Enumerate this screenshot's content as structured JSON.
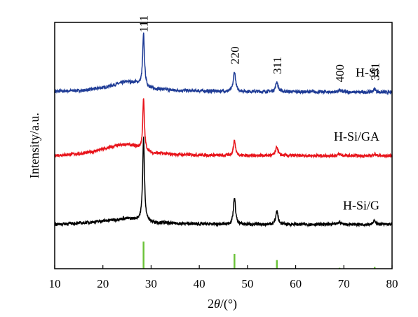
{
  "chart_data": {
    "type": "line",
    "xlabel_prefix": "2",
    "xlabel_theta": "θ",
    "xlabel_suffix": "/(°)",
    "ylabel": "Intensity/a.u.",
    "xlim": [
      10,
      80
    ],
    "xticks": [
      "10",
      "20",
      "30",
      "40",
      "50",
      "60",
      "70",
      "80"
    ],
    "series": [
      {
        "name": "H-Si",
        "color": "#1f3c96",
        "offset": 0.72,
        "baseline": [
          [
            10,
            0.0
          ],
          [
            16,
            0.004
          ],
          [
            20,
            0.015
          ],
          [
            23,
            0.03
          ],
          [
            25,
            0.04
          ],
          [
            27,
            0.035
          ],
          [
            30,
            0.012
          ],
          [
            35,
            0.004
          ],
          [
            45,
            0.0
          ],
          [
            80,
            -0.004
          ]
        ],
        "peaks": [
          [
            28.44,
            0.21,
            0.22
          ],
          [
            47.3,
            0.08,
            0.28
          ],
          [
            56.1,
            0.04,
            0.3
          ],
          [
            69.1,
            0.007,
            0.35
          ],
          [
            76.4,
            0.014,
            0.3
          ]
        ],
        "noise": 0.006
      },
      {
        "name": "H-Si/GA",
        "color": "#e8141b",
        "offset": 0.46,
        "baseline": [
          [
            10,
            0.0
          ],
          [
            16,
            0.008
          ],
          [
            20,
            0.025
          ],
          [
            23,
            0.04
          ],
          [
            25,
            0.045
          ],
          [
            27,
            0.035
          ],
          [
            30,
            0.01
          ],
          [
            35,
            0.004
          ],
          [
            45,
            0.0
          ],
          [
            80,
            -0.002
          ]
        ],
        "peaks": [
          [
            28.44,
            0.21,
            0.2
          ],
          [
            47.3,
            0.06,
            0.26
          ],
          [
            56.1,
            0.035,
            0.28
          ],
          [
            69.1,
            0.006,
            0.35
          ],
          [
            76.4,
            0.008,
            0.3
          ]
        ],
        "noise": 0.006
      },
      {
        "name": "H-Si/G",
        "color": "#000000",
        "offset": 0.18,
        "baseline": [
          [
            10,
            0.0
          ],
          [
            16,
            0.006
          ],
          [
            20,
            0.014
          ],
          [
            23,
            0.02
          ],
          [
            25,
            0.024
          ],
          [
            27,
            0.02
          ],
          [
            30,
            0.008
          ],
          [
            35,
            0.004
          ],
          [
            45,
            0.0
          ],
          [
            80,
            0.0
          ]
        ],
        "peaks": [
          [
            28.44,
            0.34,
            0.22
          ],
          [
            47.3,
            0.11,
            0.26
          ],
          [
            56.1,
            0.055,
            0.28
          ],
          [
            69.1,
            0.01,
            0.35
          ],
          [
            76.4,
            0.015,
            0.3
          ]
        ],
        "noise": 0.006
      }
    ],
    "series_labels": [
      {
        "text": "H-Si",
        "series": 0
      },
      {
        "text": "H-Si/GA",
        "series": 1
      },
      {
        "text": "H-Si/G",
        "series": 2
      }
    ],
    "peak_labels": [
      {
        "x": 28.44,
        "text": "111"
      },
      {
        "x": 47.3,
        "text": "220"
      },
      {
        "x": 56.1,
        "text": "311"
      },
      {
        "x": 69.1,
        "text": "400"
      },
      {
        "x": 76.4,
        "text": "331"
      }
    ],
    "reference_lines": {
      "color": "#6cc33a",
      "values": [
        [
          28.44,
          0.11
        ],
        [
          47.3,
          0.06
        ],
        [
          56.1,
          0.035
        ],
        [
          69.1,
          0.004
        ],
        [
          76.4,
          0.007
        ]
      ]
    }
  }
}
